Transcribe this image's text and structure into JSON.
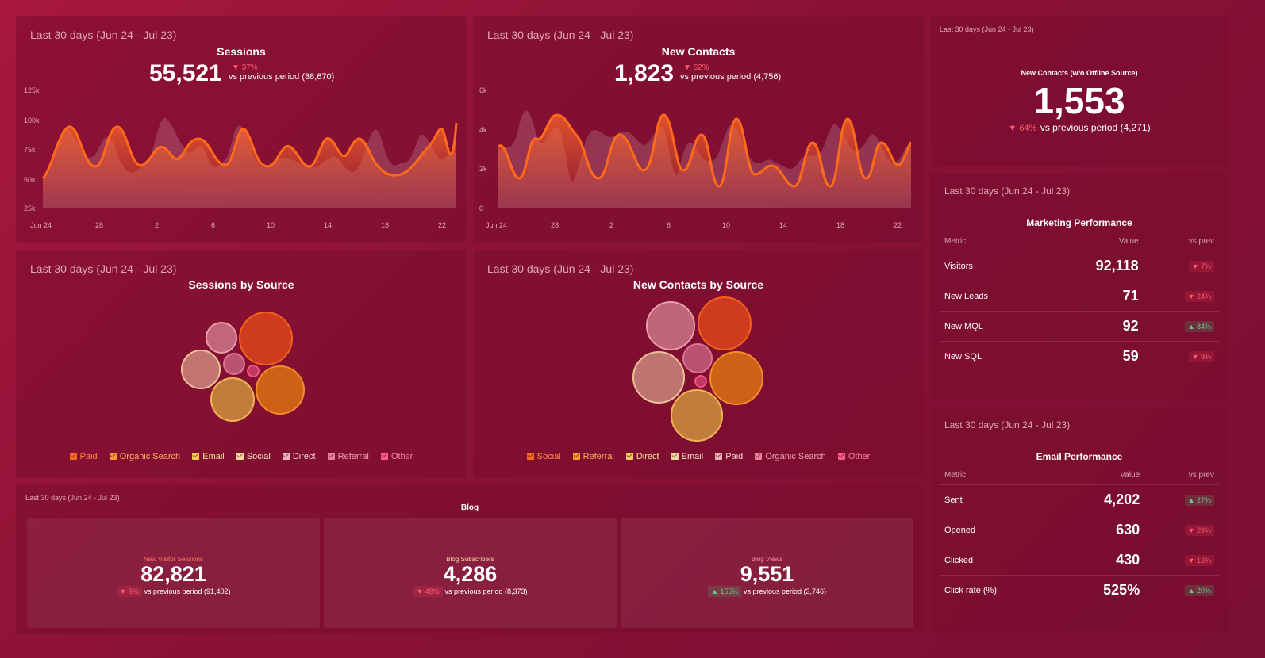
{
  "colors": {
    "accent": "#ff6a1a",
    "down": "#ff5a6e",
    "up": "#5fd08c"
  },
  "sessions": {
    "period": "Last 30 days (Jun 24 - Jul 23)",
    "title": "Sessions",
    "value": "55,521",
    "change": "▼ 37%",
    "compare": "vs previous period (88,670)",
    "y_ticks": [
      "125k",
      "100k",
      "75k",
      "50k",
      "25k"
    ],
    "x_ticks": [
      "Jun 24",
      "28",
      "2",
      "6",
      "10",
      "14",
      "18",
      "22"
    ]
  },
  "new_contacts": {
    "period": "Last 30 days (Jun 24 - Jul 23)",
    "title": "New Contacts",
    "value": "1,823",
    "change": "▼ 62%",
    "compare": "vs previous period (4,756)",
    "y_ticks": [
      "6k",
      "4k",
      "2k",
      "0"
    ],
    "x_ticks": [
      "Jun 24",
      "28",
      "2",
      "6",
      "10",
      "14",
      "18",
      "22"
    ]
  },
  "offline": {
    "period": "Last 30 days (Jun 24 - Jul 23)",
    "title": "New Contacts (w/o Offline Source)",
    "value": "1,553",
    "change": "▼ 64%",
    "compare": "vs previous period (4,271)"
  },
  "sessions_by_source": {
    "period": "Last 30 days (Jun 24 - Jul 23)",
    "title": "Sessions by Source",
    "legend": [
      {
        "label": "Paid",
        "color": "#ff6a1a"
      },
      {
        "label": "Organic Search",
        "color": "#ff9a2a"
      },
      {
        "label": "Email",
        "color": "#ffc85a"
      },
      {
        "label": "Social",
        "color": "#f5d7a0"
      },
      {
        "label": "Direct",
        "color": "#f2b0b8"
      },
      {
        "label": "Referral",
        "color": "#e8809a"
      },
      {
        "label": "Other",
        "color": "#ff5a8a"
      }
    ]
  },
  "contacts_by_source": {
    "period": "Last 30 days (Jun 24 - Jul 23)",
    "title": "New Contacts by Source",
    "legend": [
      {
        "label": "Social",
        "color": "#ff6a1a"
      },
      {
        "label": "Referral",
        "color": "#ff9a2a"
      },
      {
        "label": "Direct",
        "color": "#ffc85a"
      },
      {
        "label": "Email",
        "color": "#f5d7a0"
      },
      {
        "label": "Paid",
        "color": "#f2b0b8"
      },
      {
        "label": "Organic Search",
        "color": "#e8809a"
      },
      {
        "label": "Other",
        "color": "#ff5a8a"
      }
    ]
  },
  "marketing": {
    "period": "Last 30 days (Jun 24 - Jul 23)",
    "title": "Marketing Performance",
    "headers": [
      "Metric",
      "Value",
      "vs prev"
    ],
    "rows": [
      {
        "metric": "Visitors",
        "value": "92,118",
        "change": "▼ 7%",
        "dir": "down"
      },
      {
        "metric": "New Leads",
        "value": "71",
        "change": "▼ 24%",
        "dir": "down"
      },
      {
        "metric": "New MQL",
        "value": "92",
        "change": "▲ 84%",
        "dir": "up"
      },
      {
        "metric": "New SQL",
        "value": "59",
        "change": "▼ 9%",
        "dir": "down"
      }
    ]
  },
  "email": {
    "period": "Last 30 days (Jun 24 - Jul 23)",
    "title": "Email Performance",
    "headers": [
      "Metric",
      "Value",
      "vs prev"
    ],
    "rows": [
      {
        "metric": "Sent",
        "value": "4,202",
        "change": "▲ 27%",
        "dir": "up"
      },
      {
        "metric": "Opened",
        "value": "630",
        "change": "▼ 29%",
        "dir": "down"
      },
      {
        "metric": "Clicked",
        "value": "430",
        "change": "▼ 13%",
        "dir": "down"
      },
      {
        "metric": "Click rate (%)",
        "value": "525%",
        "change": "▲ 20%",
        "dir": "up"
      }
    ]
  },
  "blog": {
    "period": "Last 30 days (Jun 24 - Jul 23)",
    "title": "Blog",
    "items": [
      {
        "label": "New Visitor Sessions",
        "label_color": "#ff7a5a",
        "value": "82,821",
        "change": "▼ 9%",
        "dir": "down",
        "compare": "vs previous period (91,402)"
      },
      {
        "label": "Blog Subscribers",
        "label_color": "#f5d7a0",
        "value": "4,286",
        "change": "▼ 49%",
        "dir": "down",
        "compare": "vs previous period (8,373)"
      },
      {
        "label": "Blog Views",
        "label_color": "#ff8fb0",
        "value": "9,551",
        "change": "▲ 155%",
        "dir": "up",
        "compare": "vs previous period (3,746)"
      }
    ]
  }
}
